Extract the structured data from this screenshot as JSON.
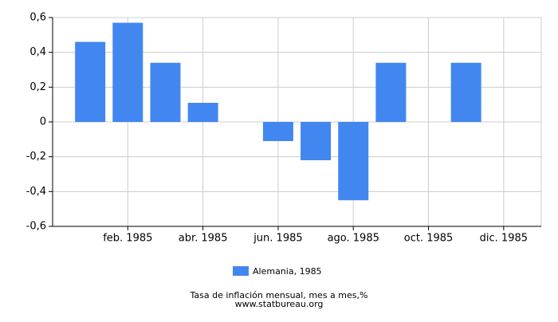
{
  "chart_data": {
    "type": "bar",
    "categories": [
      null,
      "feb. 1985",
      null,
      "abr. 1985",
      null,
      "jun. 1985",
      null,
      "ago. 1985",
      null,
      "oct. 1985",
      null,
      "dic. 1985"
    ],
    "series": [
      {
        "name": "Alemania, 1985",
        "color": "#4287f0",
        "values": [
          0.46,
          0.57,
          0.34,
          0.11,
          0,
          -0.11,
          -0.22,
          -0.45,
          0.34,
          0,
          0.34,
          0
        ]
      }
    ],
    "ylim": [
      -0.6,
      0.6
    ],
    "yticks": [
      {
        "value": -0.6,
        "label": "-0,6"
      },
      {
        "value": -0.4,
        "label": "-0,4"
      },
      {
        "value": -0.2,
        "label": "-0,2"
      },
      0,
      {
        "value": 0.2,
        "label": "0,2"
      },
      {
        "value": 0.4,
        "label": "0,4"
      },
      {
        "value": 0.6,
        "label": "0,6"
      }
    ],
    "grid": true,
    "legend": "bottom",
    "caption": "Tasa de inflación mensual, mes a mes,%",
    "source": "www.statbureau.org"
  }
}
